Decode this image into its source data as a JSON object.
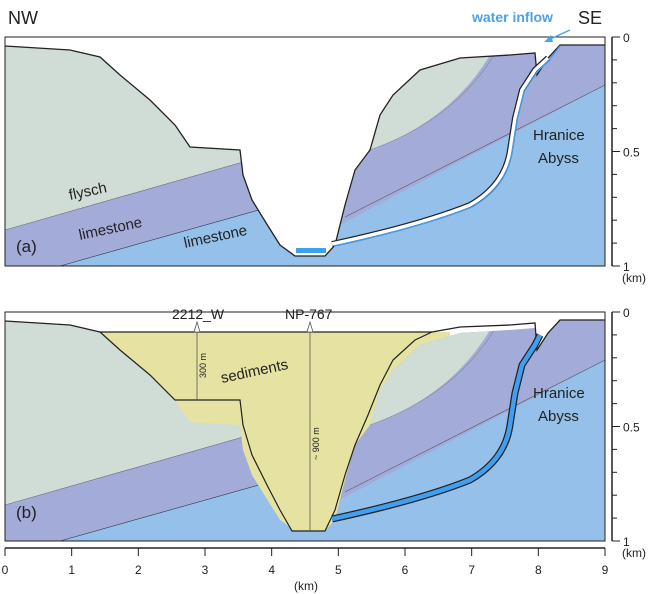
{
  "orientation": {
    "left": "NW",
    "right": "SE"
  },
  "panel_a": {
    "label": "(a)",
    "annotation": "water inflow",
    "units": {
      "flysch": "flysch",
      "limestone_upper": "limestone",
      "limestone_lower": "limestone"
    },
    "feature": [
      "Hranice",
      "Abyss"
    ]
  },
  "panel_b": {
    "label": "(b)",
    "sediments": "sediments",
    "boreholes": [
      {
        "name": "2212_W",
        "depth_label": "300 m"
      },
      {
        "name": "NP-767",
        "depth_label": "~ 900 m"
      }
    ],
    "feature": [
      "Hranice",
      "Abyss"
    ]
  },
  "depth_axis": {
    "ticks": [
      "0",
      "0.5",
      "1"
    ],
    "unit": "(km)"
  },
  "distance_axis": {
    "ticks": [
      "0",
      "1",
      "2",
      "3",
      "4",
      "5",
      "6",
      "7",
      "8",
      "9"
    ],
    "unit": "(km)"
  },
  "colors": {
    "flysch": "#d0dcd6",
    "limestone_upper": "#a3acd9",
    "limestone_lower": "#95c0ea",
    "water": "#3f9ff0",
    "sediments": "#e6e3a2",
    "water_label": "#4aa3e6"
  }
}
